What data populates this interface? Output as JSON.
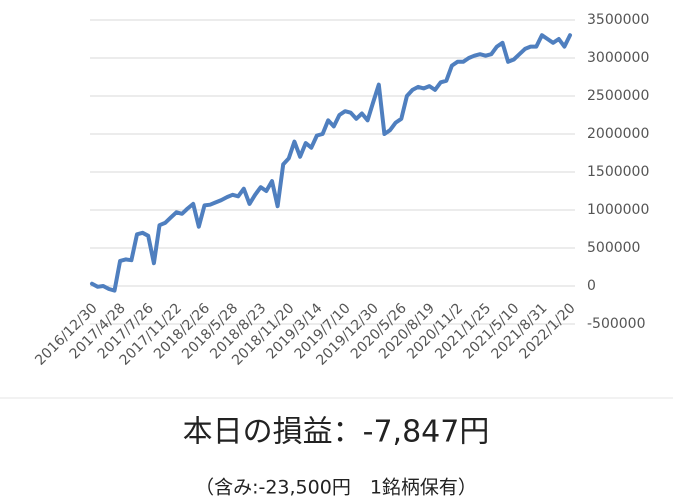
{
  "chart_data": {
    "type": "line",
    "categories": [
      "2016/12/30",
      null,
      null,
      null,
      null,
      "2017/4/28",
      null,
      null,
      null,
      null,
      "2017/7/26",
      null,
      null,
      null,
      null,
      "2017/11/22",
      null,
      null,
      null,
      null,
      "2018/2/26",
      null,
      null,
      null,
      null,
      "2018/5/28",
      null,
      null,
      null,
      null,
      "2018/8/23",
      null,
      null,
      null,
      null,
      "2018/11/20",
      null,
      null,
      null,
      null,
      "2019/3/14",
      null,
      null,
      null,
      null,
      "2019/7/10",
      null,
      null,
      null,
      null,
      "2019/12/30",
      null,
      null,
      null,
      null,
      "2020/5/26",
      null,
      null,
      null,
      null,
      "2020/8/19",
      null,
      null,
      null,
      null,
      "2020/11/2",
      null,
      null,
      null,
      null,
      "2021/1/25",
      null,
      null,
      null,
      null,
      "2021/5/10",
      null,
      null,
      null,
      null,
      "2021/8/31",
      null,
      null,
      null,
      null,
      "2022/1/20"
    ],
    "series": [
      {
        "color": "#4f7fbf",
        "values": [
          30000,
          -10000,
          0,
          -40000,
          -60000,
          330000,
          350000,
          340000,
          680000,
          700000,
          660000,
          300000,
          800000,
          830000,
          900000,
          970000,
          950000,
          1020000,
          1080000,
          780000,
          1060000,
          1070000,
          1100000,
          1130000,
          1170000,
          1200000,
          1180000,
          1280000,
          1080000,
          1200000,
          1300000,
          1250000,
          1380000,
          1050000,
          1600000,
          1680000,
          1900000,
          1700000,
          1880000,
          1820000,
          1980000,
          2000000,
          2180000,
          2100000,
          2250000,
          2300000,
          2280000,
          2200000,
          2270000,
          2180000,
          2420000,
          2650000,
          2000000,
          2050000,
          2150000,
          2200000,
          2500000,
          2580000,
          2620000,
          2600000,
          2630000,
          2580000,
          2680000,
          2700000,
          2900000,
          2950000,
          2950000,
          3000000,
          3030000,
          3050000,
          3030000,
          3050000,
          3150000,
          3200000,
          2950000,
          2980000,
          3050000,
          3120000,
          3150000,
          3150000,
          3300000,
          3250000,
          3200000,
          3250000,
          3150000,
          3300000
        ]
      }
    ],
    "ylim": [
      -500000,
      3500000
    ],
    "yticks": [
      -500000,
      0,
      500000,
      1000000,
      1500000,
      2000000,
      2500000,
      3000000,
      3500000
    ],
    "grid": true,
    "annotations": [
      "本日の損益：-7,847円",
      "（含み:-23,500円　1銘柄保有）"
    ]
  }
}
